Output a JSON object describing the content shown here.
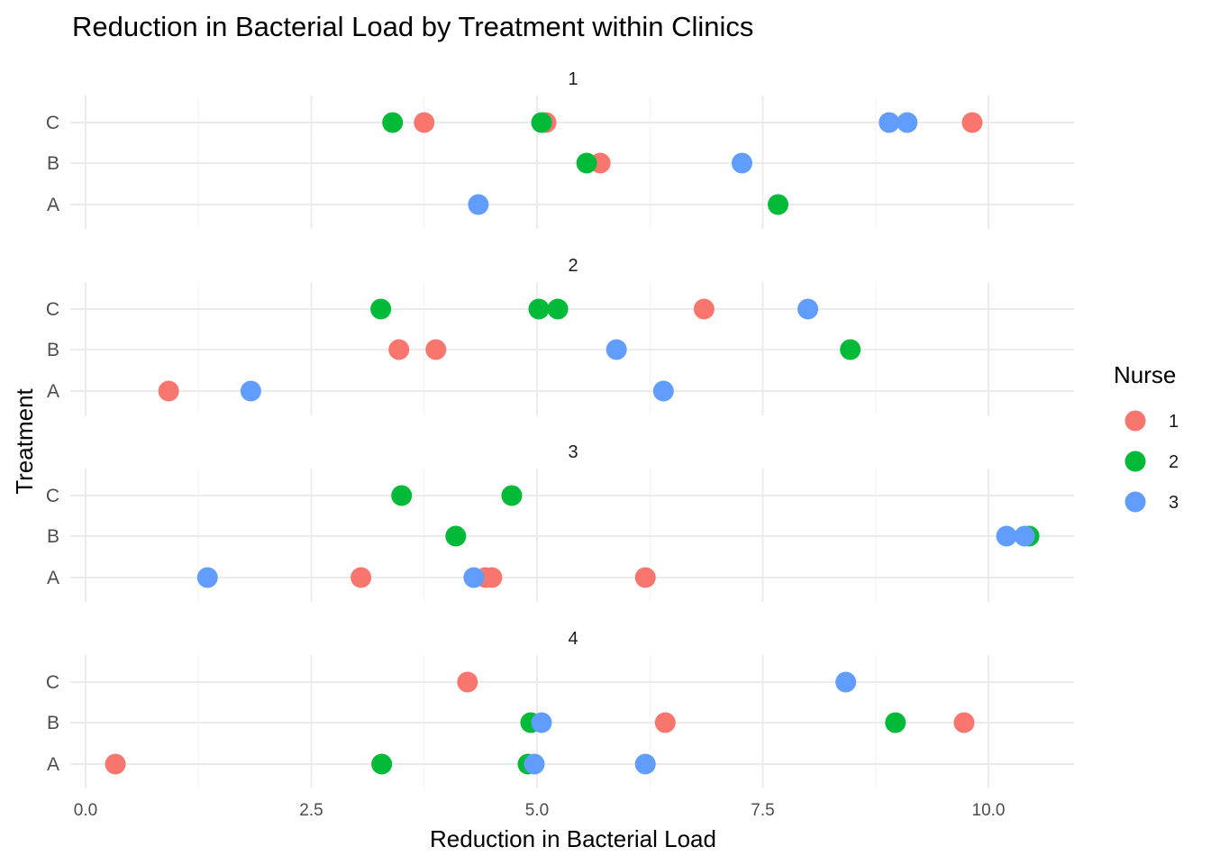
{
  "chart_data": {
    "type": "scatter",
    "title": "Reduction in Bacterial Load by Treatment within Clinics",
    "xlabel": "Reduction in Bacterial Load",
    "ylabel": "Treatment",
    "xlim": [
      -0.3,
      10.95
    ],
    "x_ticks": [
      "0.0",
      "2.5",
      "5.0",
      "7.5",
      "10.0"
    ],
    "x_tick_values": [
      0,
      2.5,
      5,
      7.5,
      10
    ],
    "categories": [
      "A",
      "B",
      "C"
    ],
    "legend": {
      "title": "Nurse",
      "placement": "right",
      "entries": [
        {
          "label": "1",
          "color": "#F8766D"
        },
        {
          "label": "2",
          "color": "#00BA38"
        },
        {
          "label": "3",
          "color": "#619CFF"
        }
      ]
    },
    "grid": true,
    "facets": [
      {
        "label": "1",
        "points": [
          {
            "x": 3.4,
            "y": "C",
            "nurse": "2"
          },
          {
            "x": 3.75,
            "y": "C",
            "nurse": "1"
          },
          {
            "x": 5.1,
            "y": "C",
            "nurse": "1"
          },
          {
            "x": 5.05,
            "y": "C",
            "nurse": "2"
          },
          {
            "x": 8.9,
            "y": "C",
            "nurse": "3"
          },
          {
            "x": 9.1,
            "y": "C",
            "nurse": "3"
          },
          {
            "x": 9.82,
            "y": "C",
            "nurse": "1"
          },
          {
            "x": 5.7,
            "y": "B",
            "nurse": "1"
          },
          {
            "x": 5.55,
            "y": "B",
            "nurse": "2"
          },
          {
            "x": 7.27,
            "y": "B",
            "nurse": "3"
          },
          {
            "x": 4.35,
            "y": "A",
            "nurse": "3"
          },
          {
            "x": 7.67,
            "y": "A",
            "nurse": "2"
          }
        ]
      },
      {
        "label": "2",
        "points": [
          {
            "x": 3.27,
            "y": "C",
            "nurse": "2"
          },
          {
            "x": 5.02,
            "y": "C",
            "nurse": "2"
          },
          {
            "x": 5.23,
            "y": "C",
            "nurse": "2"
          },
          {
            "x": 6.85,
            "y": "C",
            "nurse": "1"
          },
          {
            "x": 8.0,
            "y": "C",
            "nurse": "3"
          },
          {
            "x": 3.47,
            "y": "B",
            "nurse": "1"
          },
          {
            "x": 3.88,
            "y": "B",
            "nurse": "1"
          },
          {
            "x": 5.88,
            "y": "B",
            "nurse": "3"
          },
          {
            "x": 8.47,
            "y": "B",
            "nurse": "2"
          },
          {
            "x": 0.92,
            "y": "A",
            "nurse": "1"
          },
          {
            "x": 1.83,
            "y": "A",
            "nurse": "3"
          },
          {
            "x": 6.4,
            "y": "A",
            "nurse": "3"
          }
        ]
      },
      {
        "label": "3",
        "points": [
          {
            "x": 3.5,
            "y": "C",
            "nurse": "2"
          },
          {
            "x": 4.72,
            "y": "C",
            "nurse": "2"
          },
          {
            "x": 4.1,
            "y": "B",
            "nurse": "2"
          },
          {
            "x": 10.45,
            "y": "B",
            "nurse": "2"
          },
          {
            "x": 10.2,
            "y": "B",
            "nurse": "3"
          },
          {
            "x": 10.4,
            "y": "B",
            "nurse": "3"
          },
          {
            "x": 1.35,
            "y": "A",
            "nurse": "3"
          },
          {
            "x": 3.05,
            "y": "A",
            "nurse": "1"
          },
          {
            "x": 4.5,
            "y": "A",
            "nurse": "1"
          },
          {
            "x": 4.43,
            "y": "A",
            "nurse": "1"
          },
          {
            "x": 4.3,
            "y": "A",
            "nurse": "3"
          },
          {
            "x": 6.2,
            "y": "A",
            "nurse": "1"
          }
        ]
      },
      {
        "label": "4",
        "points": [
          {
            "x": 4.23,
            "y": "C",
            "nurse": "1"
          },
          {
            "x": 8.42,
            "y": "C",
            "nurse": "3"
          },
          {
            "x": 4.93,
            "y": "B",
            "nurse": "2"
          },
          {
            "x": 5.05,
            "y": "B",
            "nurse": "3"
          },
          {
            "x": 6.42,
            "y": "B",
            "nurse": "1"
          },
          {
            "x": 8.97,
            "y": "B",
            "nurse": "2"
          },
          {
            "x": 9.73,
            "y": "B",
            "nurse": "1"
          },
          {
            "x": 0.33,
            "y": "A",
            "nurse": "1"
          },
          {
            "x": 3.28,
            "y": "A",
            "nurse": "2"
          },
          {
            "x": 4.9,
            "y": "A",
            "nurse": "2"
          },
          {
            "x": 4.97,
            "y": "A",
            "nurse": "3"
          },
          {
            "x": 6.2,
            "y": "A",
            "nurse": "3"
          }
        ]
      }
    ]
  }
}
